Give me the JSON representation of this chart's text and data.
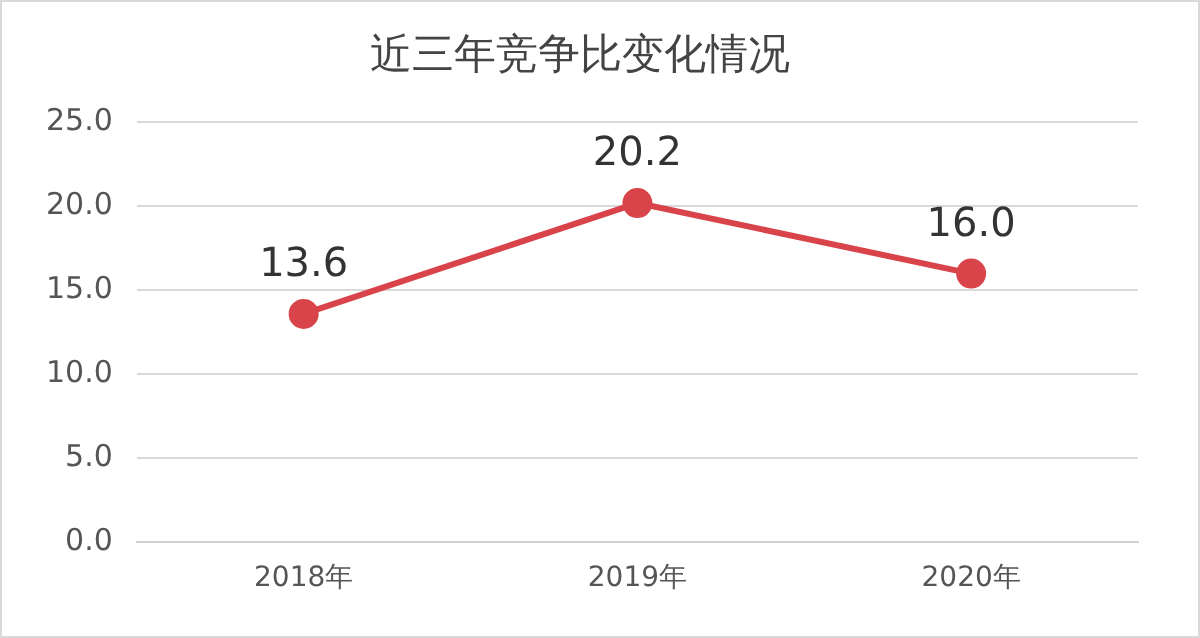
{
  "chart_data": {
    "type": "line",
    "title": "近三年竞争比变化情况",
    "categories": [
      "2018年",
      "2019年",
      "2020年"
    ],
    "series": [
      {
        "color": "#d9444a",
        "values": [
          13.6,
          20.2,
          16.0
        ],
        "value_labels": [
          "13.6",
          "20.2",
          "16.0"
        ]
      }
    ],
    "ylim": [
      0,
      25
    ],
    "yticks": [
      {
        "value": 0,
        "label": "0.0"
      },
      {
        "value": 5,
        "label": "5.0"
      },
      {
        "value": 10,
        "label": "10.0"
      },
      {
        "value": 15,
        "label": "15.0"
      },
      {
        "value": 20,
        "label": "20.0"
      },
      {
        "value": 25,
        "label": "25.0"
      }
    ],
    "grid": "y",
    "legend": false,
    "marker": "circle",
    "line_style": "solid"
  }
}
